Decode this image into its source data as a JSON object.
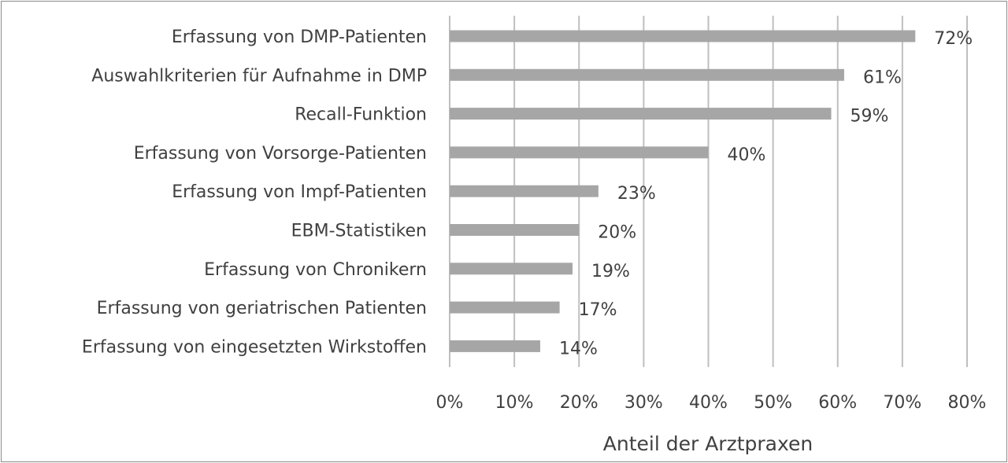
{
  "chart_data": {
    "type": "bar",
    "orientation": "horizontal",
    "categories": [
      "Erfassung von DMP-Patienten",
      "Auswahlkriterien für Aufnahme in DMP",
      "Recall-Funktion",
      "Erfassung von Vorsorge-Patienten",
      "Erfassung von Impf-Patienten",
      "EBM-Statistiken",
      "Erfassung von Chronikern",
      "Erfassung von geriatrischen Patienten",
      "Erfassung von eingesetzten Wirkstoffen"
    ],
    "values": [
      72,
      61,
      59,
      40,
      23,
      20,
      19,
      17,
      14
    ],
    "data_labels": [
      "72%",
      "61%",
      "59%",
      "40%",
      "23%",
      "20%",
      "19%",
      "17%",
      "14%"
    ],
    "xlabel": "Anteil der Arztpraxen",
    "ylabel": "",
    "xlim": [
      0,
      80
    ],
    "xticks": [
      0,
      10,
      20,
      30,
      40,
      50,
      60,
      70,
      80
    ],
    "xtick_labels": [
      "0%",
      "10%",
      "20%",
      "30%",
      "40%",
      "50%",
      "60%",
      "70%",
      "80%"
    ],
    "grid": "vertical gridlines on",
    "legend": "none",
    "colors": {
      "bar": "#a6a6a6",
      "grid": "#bfbfbf",
      "text": "#404040",
      "border": "#8a8a8a"
    }
  }
}
